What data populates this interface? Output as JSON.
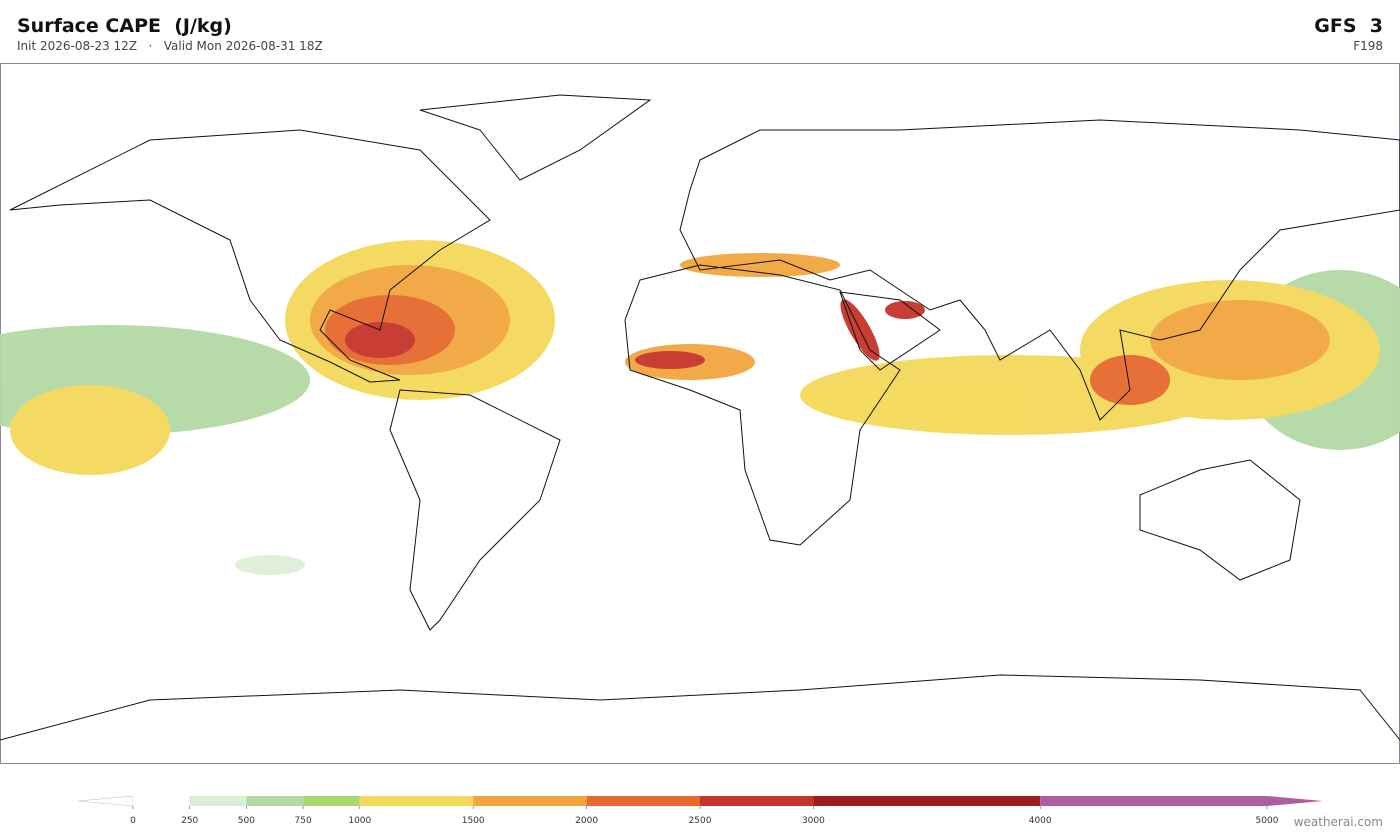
{
  "header": {
    "title": "Surface CAPE  (J/kg)",
    "init": "Init 2026-08-23 12Z",
    "separator": "·",
    "valid": "Valid Mon 2026-08-31 18Z",
    "model": "GFS  3",
    "forecast_hour": "F198"
  },
  "colorbar": {
    "lim": [
      0,
      5000
    ],
    "ticks": [
      0,
      250,
      500,
      750,
      1000,
      1500,
      2000,
      2500,
      3000,
      4000,
      5000
    ],
    "colors": [
      "#ffffff",
      "#dcefd5",
      "#b3d9a4",
      "#a8d86e",
      "#f4d95a",
      "#f2a53e",
      "#e6692e",
      "#c6332a",
      "#981e1f",
      "#ad5ea1"
    ],
    "under_color": "#ffffff",
    "over_color": "#ad5ea1"
  },
  "credit": "weatherai.com"
}
